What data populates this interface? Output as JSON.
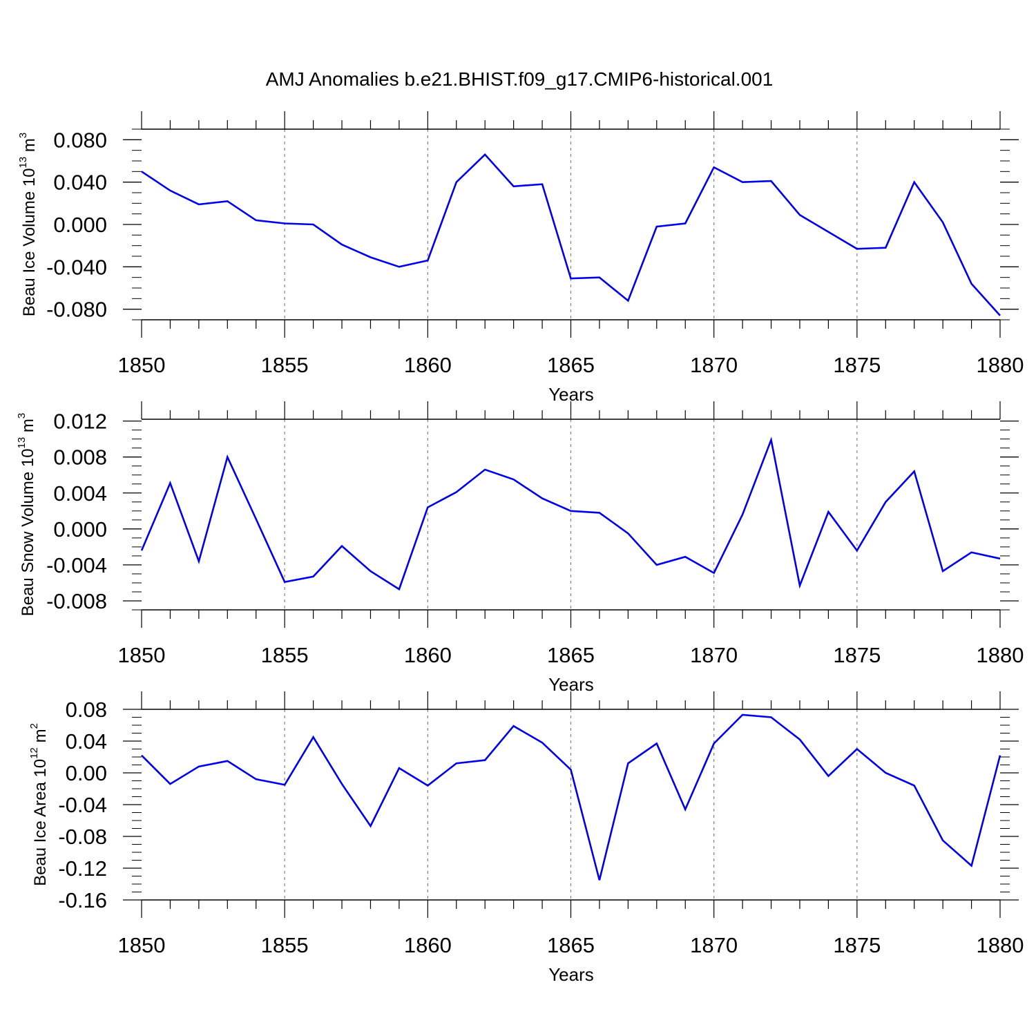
{
  "figure": {
    "title": "AMJ Anomalies b.e21.BHIST.f09_g17.CMIP6-historical.001"
  },
  "chart_data": [
    {
      "type": "line",
      "xlabel": "Years",
      "ylabel": {
        "text": "Beau Ice Volume 10",
        "exp": "13",
        "unit": " m",
        "unit_exp": "3"
      },
      "xlim": [
        1850,
        1880
      ],
      "ylim": [
        -0.09,
        0.09
      ],
      "x_ticks": [
        "1850",
        "1855",
        "1860",
        "1865",
        "1870",
        "1875",
        "1880"
      ],
      "y_ticks": [
        {
          "value": -0.08,
          "label": "-0.080"
        },
        {
          "value": -0.04,
          "label": "-0.040"
        },
        {
          "value": 0.0,
          "label": "0.000"
        },
        {
          "value": 0.04,
          "label": "0.040"
        },
        {
          "value": 0.08,
          "label": "0.080"
        }
      ],
      "y_minor_step": 0.01,
      "vertical_grid": "dashed at 1855, 1860, 1865, 1870, 1875",
      "line_color": "#0000ee",
      "x": [
        1850,
        1851,
        1852,
        1853,
        1854,
        1855,
        1856,
        1857,
        1858,
        1859,
        1860,
        1861,
        1862,
        1863,
        1864,
        1865,
        1866,
        1867,
        1868,
        1869,
        1870,
        1871,
        1872,
        1873,
        1874,
        1875,
        1876,
        1877,
        1878,
        1879,
        1880
      ],
      "values": [
        0.05,
        0.032,
        0.019,
        0.022,
        0.004,
        0.001,
        0.0,
        -0.019,
        -0.031,
        -0.04,
        -0.034,
        0.04,
        0.066,
        0.036,
        0.038,
        -0.051,
        -0.05,
        -0.072,
        -0.002,
        0.001,
        0.054,
        0.04,
        0.041,
        0.009,
        -0.007,
        -0.023,
        -0.022,
        0.04,
        0.002,
        -0.056,
        -0.086
      ]
    },
    {
      "type": "line",
      "xlabel": "Years",
      "ylabel": {
        "text": "Beau Snow Volume 10",
        "exp": "13",
        "unit": " m",
        "unit_exp": "3"
      },
      "xlim": [
        1850,
        1880
      ],
      "ylim": [
        -0.009,
        0.0122
      ],
      "x_ticks": [
        "1850",
        "1855",
        "1860",
        "1865",
        "1870",
        "1875",
        "1880"
      ],
      "y_ticks": [
        {
          "value": -0.008,
          "label": "-0.008"
        },
        {
          "value": -0.004,
          "label": "-0.004"
        },
        {
          "value": 0.0,
          "label": "0.000"
        },
        {
          "value": 0.004,
          "label": "0.004"
        },
        {
          "value": 0.008,
          "label": "0.008"
        },
        {
          "value": 0.012,
          "label": "0.012"
        }
      ],
      "y_minor_step": 0.001,
      "vertical_grid": "dashed at 1855, 1860, 1865, 1870, 1875",
      "line_color": "#0000ee",
      "x": [
        1850,
        1851,
        1852,
        1853,
        1854,
        1855,
        1856,
        1857,
        1858,
        1859,
        1860,
        1861,
        1862,
        1863,
        1864,
        1865,
        1866,
        1867,
        1868,
        1869,
        1870,
        1871,
        1872,
        1873,
        1874,
        1875,
        1876,
        1877,
        1878,
        1879,
        1880
      ],
      "values": [
        -0.0024,
        0.0051,
        -0.0036,
        0.008,
        0.0011,
        -0.0059,
        -0.0053,
        -0.0019,
        -0.0047,
        -0.0067,
        0.0024,
        0.0041,
        0.0066,
        0.0055,
        0.0034,
        0.002,
        0.0018,
        -0.0005,
        -0.004,
        -0.0031,
        -0.0049,
        0.0016,
        0.0099,
        -0.0063,
        0.0019,
        -0.0024,
        0.003,
        0.0064,
        -0.0047,
        -0.0026,
        -0.0033
      ]
    },
    {
      "type": "line",
      "xlabel": "Years",
      "ylabel": {
        "text": "Beau Ice Area 10",
        "exp": "12",
        "unit": " m",
        "unit_exp": "2"
      },
      "xlim": [
        1850,
        1880
      ],
      "ylim": [
        -0.16,
        0.08
      ],
      "x_ticks": [
        "1850",
        "1855",
        "1860",
        "1865",
        "1870",
        "1875",
        "1880"
      ],
      "y_ticks": [
        {
          "value": -0.16,
          "label": "-0.16"
        },
        {
          "value": -0.12,
          "label": "-0.12"
        },
        {
          "value": -0.08,
          "label": "-0.08"
        },
        {
          "value": -0.04,
          "label": "-0.04"
        },
        {
          "value": 0.0,
          "label": "0.00"
        },
        {
          "value": 0.04,
          "label": "0.04"
        },
        {
          "value": 0.08,
          "label": "0.08"
        }
      ],
      "y_minor_step": 0.01,
      "vertical_grid": "dashed at 1855, 1860, 1865, 1870, 1875",
      "line_color": "#0000ee",
      "x": [
        1850,
        1851,
        1852,
        1853,
        1854,
        1855,
        1856,
        1857,
        1858,
        1859,
        1860,
        1861,
        1862,
        1863,
        1864,
        1865,
        1866,
        1867,
        1868,
        1869,
        1870,
        1871,
        1872,
        1873,
        1874,
        1875,
        1876,
        1877,
        1878,
        1879,
        1880
      ],
      "values": [
        0.022,
        -0.014,
        0.008,
        0.015,
        -0.008,
        -0.015,
        0.045,
        -0.014,
        -0.067,
        0.006,
        -0.016,
        0.012,
        0.016,
        0.059,
        0.038,
        0.004,
        -0.135,
        0.012,
        0.037,
        -0.046,
        0.037,
        0.073,
        0.07,
        0.042,
        -0.004,
        0.03,
        0.0,
        -0.016,
        -0.085,
        -0.117,
        0.022
      ]
    }
  ]
}
